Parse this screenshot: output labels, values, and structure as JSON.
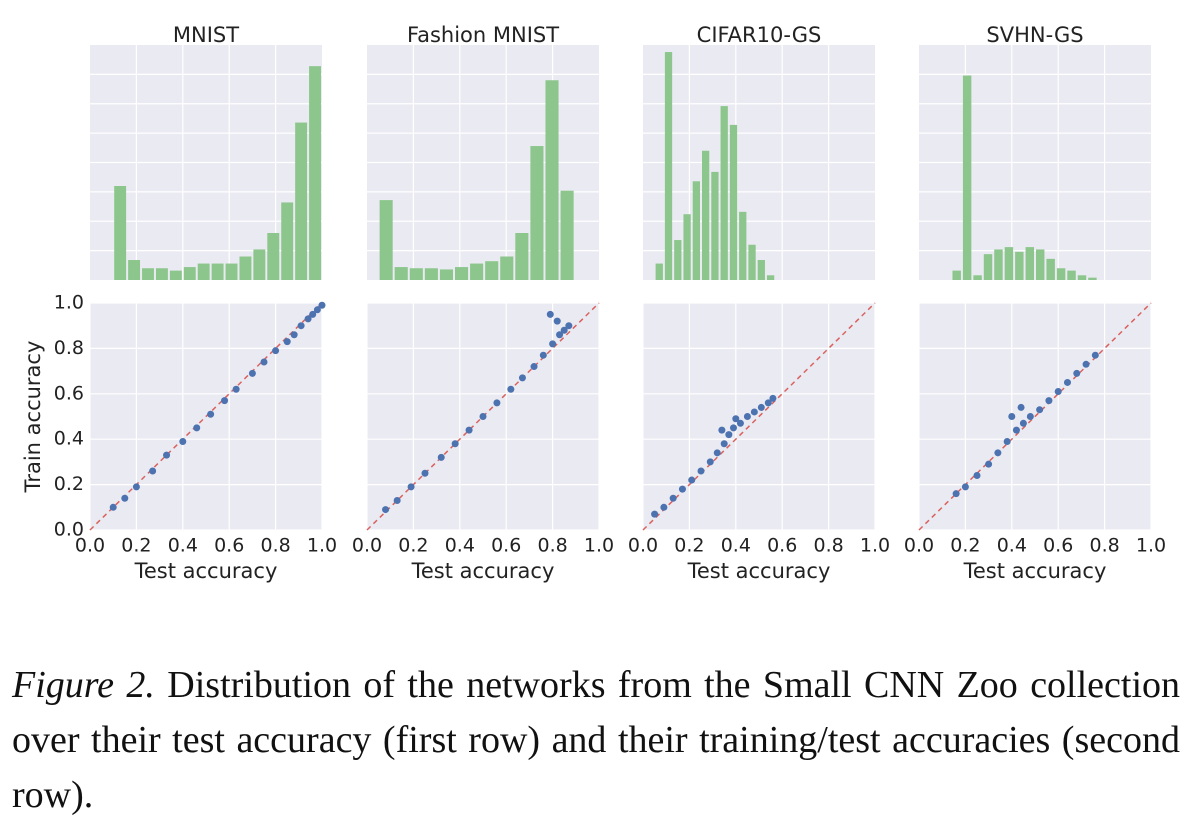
{
  "chart_data": [
    {
      "type": "histogram",
      "title": "MNIST",
      "color": "#8cc68c",
      "xlim": [
        0,
        1
      ],
      "ylim": [
        0,
        100
      ],
      "bins": [
        0.1,
        0.16,
        0.22,
        0.28,
        0.34,
        0.4,
        0.46,
        0.52,
        0.58,
        0.64,
        0.7,
        0.76,
        0.82,
        0.88,
        0.94,
        1.0
      ],
      "values": [
        40,
        8.5,
        5,
        5,
        4,
        5.5,
        7,
        7,
        7,
        10,
        13,
        20,
        33,
        67,
        91
      ]
    },
    {
      "type": "histogram",
      "title": "Fashion MNIST",
      "color": "#8cc68c",
      "xlim": [
        0,
        1
      ],
      "ylim": [
        0,
        100
      ],
      "bins": [
        0.05,
        0.115,
        0.18,
        0.245,
        0.31,
        0.375,
        0.44,
        0.505,
        0.57,
        0.635,
        0.7,
        0.765,
        0.83,
        0.895
      ],
      "values": [
        34,
        5.5,
        5,
        5,
        4.5,
        5.5,
        7,
        8,
        10,
        20,
        57,
        85,
        38
      ]
    },
    {
      "type": "histogram",
      "title": "CIFAR10-GS",
      "color": "#8cc68c",
      "xlim": [
        0,
        1
      ],
      "ylim": [
        0,
        100
      ],
      "bins": [
        0.05,
        0.09,
        0.13,
        0.17,
        0.21,
        0.25,
        0.29,
        0.33,
        0.37,
        0.41,
        0.45,
        0.49,
        0.53,
        0.57
      ],
      "values": [
        7,
        97,
        17,
        28,
        42,
        55,
        46,
        74,
        66,
        29,
        15,
        8.5,
        2
      ]
    },
    {
      "type": "histogram",
      "title": "SVHN-GS",
      "color": "#8cc68c",
      "xlim": [
        0,
        1
      ],
      "ylim": [
        0,
        100
      ],
      "bins": [
        0.14,
        0.185,
        0.23,
        0.275,
        0.32,
        0.365,
        0.41,
        0.455,
        0.5,
        0.545,
        0.59,
        0.635,
        0.68,
        0.725,
        0.77
      ],
      "values": [
        4,
        87,
        2,
        11,
        13,
        14,
        12,
        14,
        13,
        9,
        5,
        4,
        2,
        1
      ]
    },
    {
      "type": "scatter",
      "x_label": "Test accuracy",
      "y_label": "Train accuracy",
      "color": "#4c72b0",
      "diagonal_color": "#d9625f",
      "xlim": [
        0,
        1
      ],
      "ylim": [
        0,
        1
      ],
      "xticks": [
        {
          "value": 0,
          "label": "0.0"
        },
        {
          "value": 0.2,
          "label": "0.2"
        },
        {
          "value": 0.4,
          "label": "0.4"
        },
        {
          "value": 0.6,
          "label": "0.6"
        },
        {
          "value": 0.8,
          "label": "0.8"
        },
        {
          "value": 1,
          "label": "1.0"
        }
      ],
      "yticks": [
        {
          "value": 0,
          "label": "0.0"
        },
        {
          "value": 0.2,
          "label": "0.2"
        },
        {
          "value": 0.4,
          "label": "0.4"
        },
        {
          "value": 0.6,
          "label": "0.6"
        },
        {
          "value": 0.8,
          "label": "0.8"
        },
        {
          "value": 1,
          "label": "1.0"
        }
      ],
      "x": [
        0.1,
        0.15,
        0.2,
        0.27,
        0.33,
        0.4,
        0.46,
        0.52,
        0.58,
        0.63,
        0.7,
        0.75,
        0.8,
        0.85,
        0.88,
        0.91,
        0.94,
        0.96,
        0.98,
        1.0
      ],
      "values": [
        0.1,
        0.14,
        0.19,
        0.26,
        0.33,
        0.39,
        0.45,
        0.51,
        0.57,
        0.62,
        0.69,
        0.74,
        0.79,
        0.83,
        0.86,
        0.9,
        0.93,
        0.95,
        0.97,
        0.99
      ]
    },
    {
      "type": "scatter",
      "x_label": "Test accuracy",
      "color": "#4c72b0",
      "diagonal_color": "#d9625f",
      "xlim": [
        0,
        1
      ],
      "ylim": [
        0,
        1
      ],
      "xticks": [
        {
          "value": 0,
          "label": "0.0"
        },
        {
          "value": 0.2,
          "label": "0.2"
        },
        {
          "value": 0.4,
          "label": "0.4"
        },
        {
          "value": 0.6,
          "label": "0.6"
        },
        {
          "value": 0.8,
          "label": "0.8"
        },
        {
          "value": 1,
          "label": "1.0"
        }
      ],
      "x": [
        0.08,
        0.13,
        0.19,
        0.25,
        0.32,
        0.38,
        0.44,
        0.5,
        0.56,
        0.62,
        0.67,
        0.72,
        0.76,
        0.8,
        0.83,
        0.85,
        0.87,
        0.82,
        0.79
      ],
      "values": [
        0.09,
        0.13,
        0.19,
        0.25,
        0.32,
        0.38,
        0.44,
        0.5,
        0.56,
        0.62,
        0.67,
        0.72,
        0.77,
        0.82,
        0.86,
        0.88,
        0.9,
        0.92,
        0.95
      ]
    },
    {
      "type": "scatter",
      "x_label": "Test accuracy",
      "color": "#4c72b0",
      "diagonal_color": "#d9625f",
      "xlim": [
        0,
        1
      ],
      "ylim": [
        0,
        1
      ],
      "x": [
        0.05,
        0.09,
        0.13,
        0.17,
        0.21,
        0.25,
        0.29,
        0.32,
        0.35,
        0.37,
        0.39,
        0.42,
        0.45,
        0.48,
        0.51,
        0.54,
        0.56,
        0.34,
        0.4
      ],
      "values": [
        0.07,
        0.1,
        0.14,
        0.18,
        0.22,
        0.26,
        0.3,
        0.34,
        0.38,
        0.42,
        0.45,
        0.47,
        0.5,
        0.52,
        0.54,
        0.56,
        0.58,
        0.44,
        0.49
      ],
      "xticks": [
        {
          "value": 0,
          "label": "0.0"
        },
        {
          "value": 0.2,
          "label": "0.2"
        },
        {
          "value": 0.4,
          "label": "0.4"
        },
        {
          "value": 0.6,
          "label": "0.6"
        },
        {
          "value": 0.8,
          "label": "0.8"
        },
        {
          "value": 1,
          "label": "1.0"
        }
      ]
    },
    {
      "type": "scatter",
      "x_label": "Test accuracy",
      "color": "#4c72b0",
      "diagonal_color": "#d9625f",
      "xlim": [
        0,
        1
      ],
      "ylim": [
        0,
        1
      ],
      "xticks": [
        {
          "value": 0,
          "label": "0.0"
        },
        {
          "value": 0.2,
          "label": "0.2"
        },
        {
          "value": 0.4,
          "label": "0.4"
        },
        {
          "value": 0.6,
          "label": "0.6"
        },
        {
          "value": 0.8,
          "label": "0.8"
        },
        {
          "value": 1,
          "label": "1.0"
        }
      ],
      "x": [
        0.16,
        0.2,
        0.25,
        0.3,
        0.34,
        0.38,
        0.42,
        0.45,
        0.48,
        0.52,
        0.56,
        0.6,
        0.64,
        0.68,
        0.72,
        0.76,
        0.4,
        0.44
      ],
      "values": [
        0.16,
        0.19,
        0.24,
        0.29,
        0.34,
        0.39,
        0.44,
        0.47,
        0.5,
        0.53,
        0.57,
        0.61,
        0.65,
        0.69,
        0.73,
        0.77,
        0.5,
        0.54
      ]
    }
  ],
  "caption": {
    "label": "Figure 2.",
    "text": "Distribution of the networks from the Small CNN Zoo collection over their test accuracy (first row) and their training/test accuracies (second row)."
  }
}
